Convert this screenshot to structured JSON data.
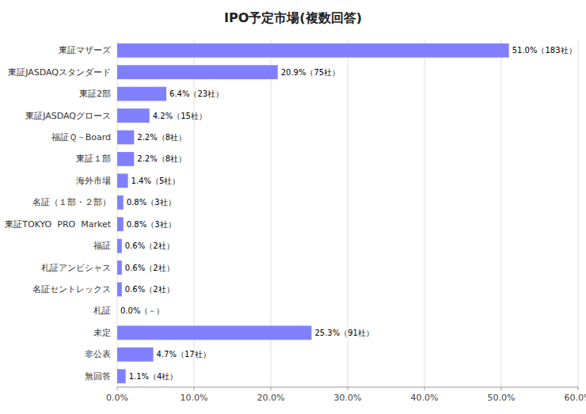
{
  "chart_data": {
    "type": "bar",
    "orientation": "horizontal",
    "title": "IPO予定市場(複数回答)",
    "categories": [
      "東証マザーズ",
      "東証JASDAQスタンダード",
      "東証2部",
      "東証JASDAQグロース",
      "福証Ｑ－Board",
      "東証１部",
      "海外市場",
      "名証（１部・２部）",
      "東証TOKYO  PRO  Market",
      "福証",
      "札証アンビシャス",
      "名証セントレックス",
      "札証",
      "未定",
      "非公表",
      "無回答"
    ],
    "values": [
      51.0,
      20.9,
      6.4,
      4.2,
      2.2,
      2.2,
      1.4,
      0.8,
      0.8,
      0.6,
      0.6,
      0.6,
      0.0,
      25.3,
      4.7,
      1.1
    ],
    "value_labels": [
      "51.0%（183社）",
      "20.9%（75社）",
      "6.4%（23社）",
      "4.2%（15社）",
      "2.2%（8社）",
      "2.2%（8社）",
      "1.4%（5社）",
      "0.8%（3社）",
      "0.8%（3社）",
      "0.6%（2社）",
      "0.6%（2社）",
      "0.6%（2社）",
      "0.0%（－）",
      "25.3%（91社）",
      "4.7%（17社）",
      "1.1%（4社）"
    ],
    "data_labels": true,
    "color": "#8080ff",
    "xlim": [
      0,
      60
    ],
    "xticks": [
      {
        "value": 0,
        "label": "0.0%"
      },
      {
        "value": 10,
        "label": "10.0%"
      },
      {
        "value": 20,
        "label": "20.0%"
      },
      {
        "value": 30,
        "label": "30.0%"
      },
      {
        "value": 40,
        "label": "40.0%"
      },
      {
        "value": 50,
        "label": "50.0%"
      },
      {
        "value": 60,
        "label": "60.0%"
      }
    ],
    "grid": true
  }
}
